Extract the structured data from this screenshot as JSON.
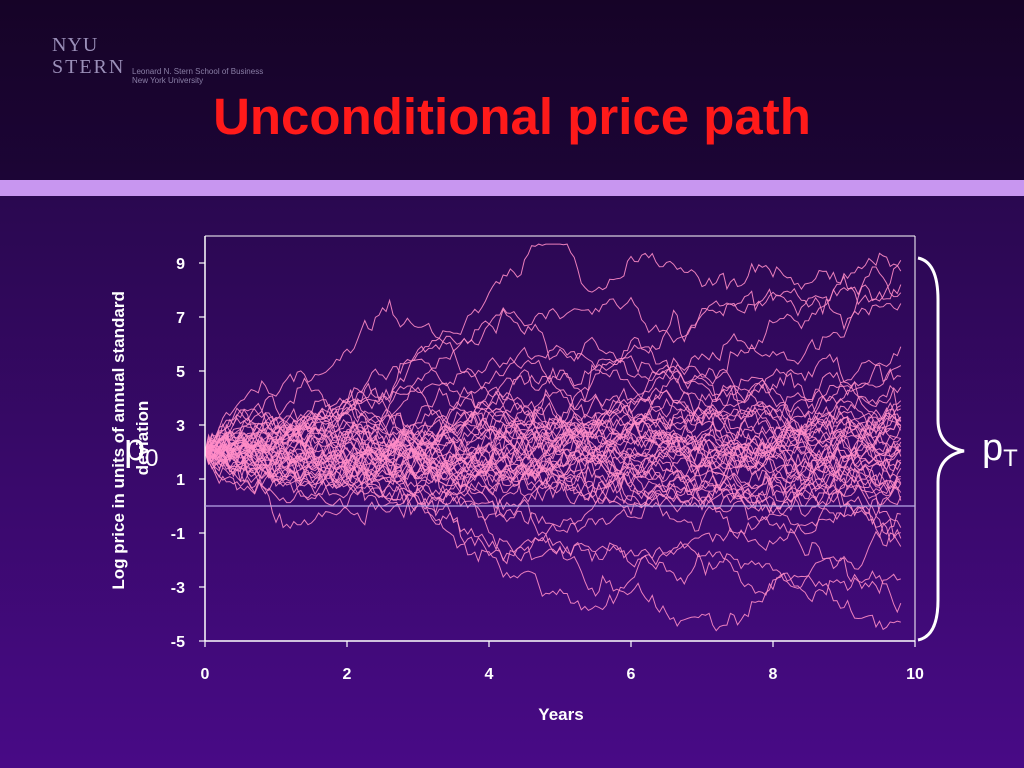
{
  "header": {
    "title": "Unconditional price path",
    "logo_line1": "NYU",
    "logo_line2": "STERN",
    "school_line1": "Leonard N. Stern School of Business",
    "school_line2": "New York University"
  },
  "colors": {
    "title": "#ff1a1a",
    "band": "#c896f0",
    "paths": "#ff8cc6",
    "axis": "#ffffff"
  },
  "annotations": {
    "p0_letter": "p",
    "p0_sub": "0",
    "pT_letter": "p",
    "pT_sub": "T"
  },
  "chart_data": {
    "type": "line",
    "title": "",
    "xlabel": "Years",
    "ylabel": "Log price in units of annual standard deviation",
    "xlim": [
      0,
      10
    ],
    "ylim": [
      -5,
      10
    ],
    "x_ticks": [
      0,
      2,
      4,
      6,
      8,
      10
    ],
    "y_ticks": [
      -5,
      -3,
      -1,
      1,
      3,
      5,
      7,
      9
    ],
    "x_tick_labels": [
      "0",
      "2",
      "4",
      "6",
      "8",
      "10"
    ],
    "y_tick_labels": [
      "-5",
      "-3",
      "-1",
      "1",
      "3",
      "5",
      "7",
      "9"
    ],
    "reference_line_y": 0,
    "start_value": 2,
    "end_time": 9.8,
    "grid": false,
    "legend": "none",
    "n_paths": 50,
    "endpoints_approx": [
      8.7,
      9.1,
      8.2,
      7.5,
      7.9,
      5.9,
      5.2,
      4.8,
      4.4,
      3.9,
      3.6,
      3.3,
      3.0,
      2.8,
      2.5,
      2.2,
      2.0,
      1.7,
      1.4,
      1.1,
      0.8,
      0.5,
      0.2,
      -0.3,
      -0.8,
      -1.2,
      -1.5,
      -2.7,
      -3.6,
      -4.3
    ]
  }
}
